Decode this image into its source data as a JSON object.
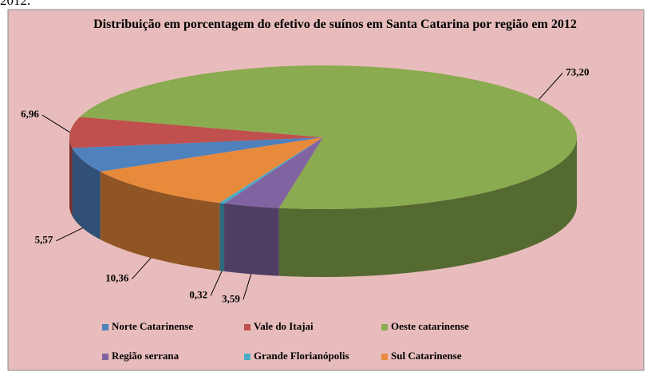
{
  "caption": "2012.",
  "chart_data": {
    "type": "pie3d",
    "title": "Distribuição em porcentagem do efetivo de suínos em Santa Catarina por região em 2012",
    "categories": [
      "Norte Catarinense",
      "Vale do Itajai",
      "Oeste catarinense",
      "Região serrana",
      "Grande Florianópolis",
      "Sul Catarinense"
    ],
    "values": [
      5.57,
      6.96,
      73.2,
      3.59,
      0.32,
      10.36
    ],
    "value_labels": [
      "5,57",
      "6,96",
      "73,20",
      "3,59",
      "0,32",
      "10,36"
    ],
    "colors": [
      "#4f81bd",
      "#c0504d",
      "#8aab4f",
      "#8064a2",
      "#4bacc6",
      "#e88a3c"
    ],
    "legend": "bottom"
  }
}
